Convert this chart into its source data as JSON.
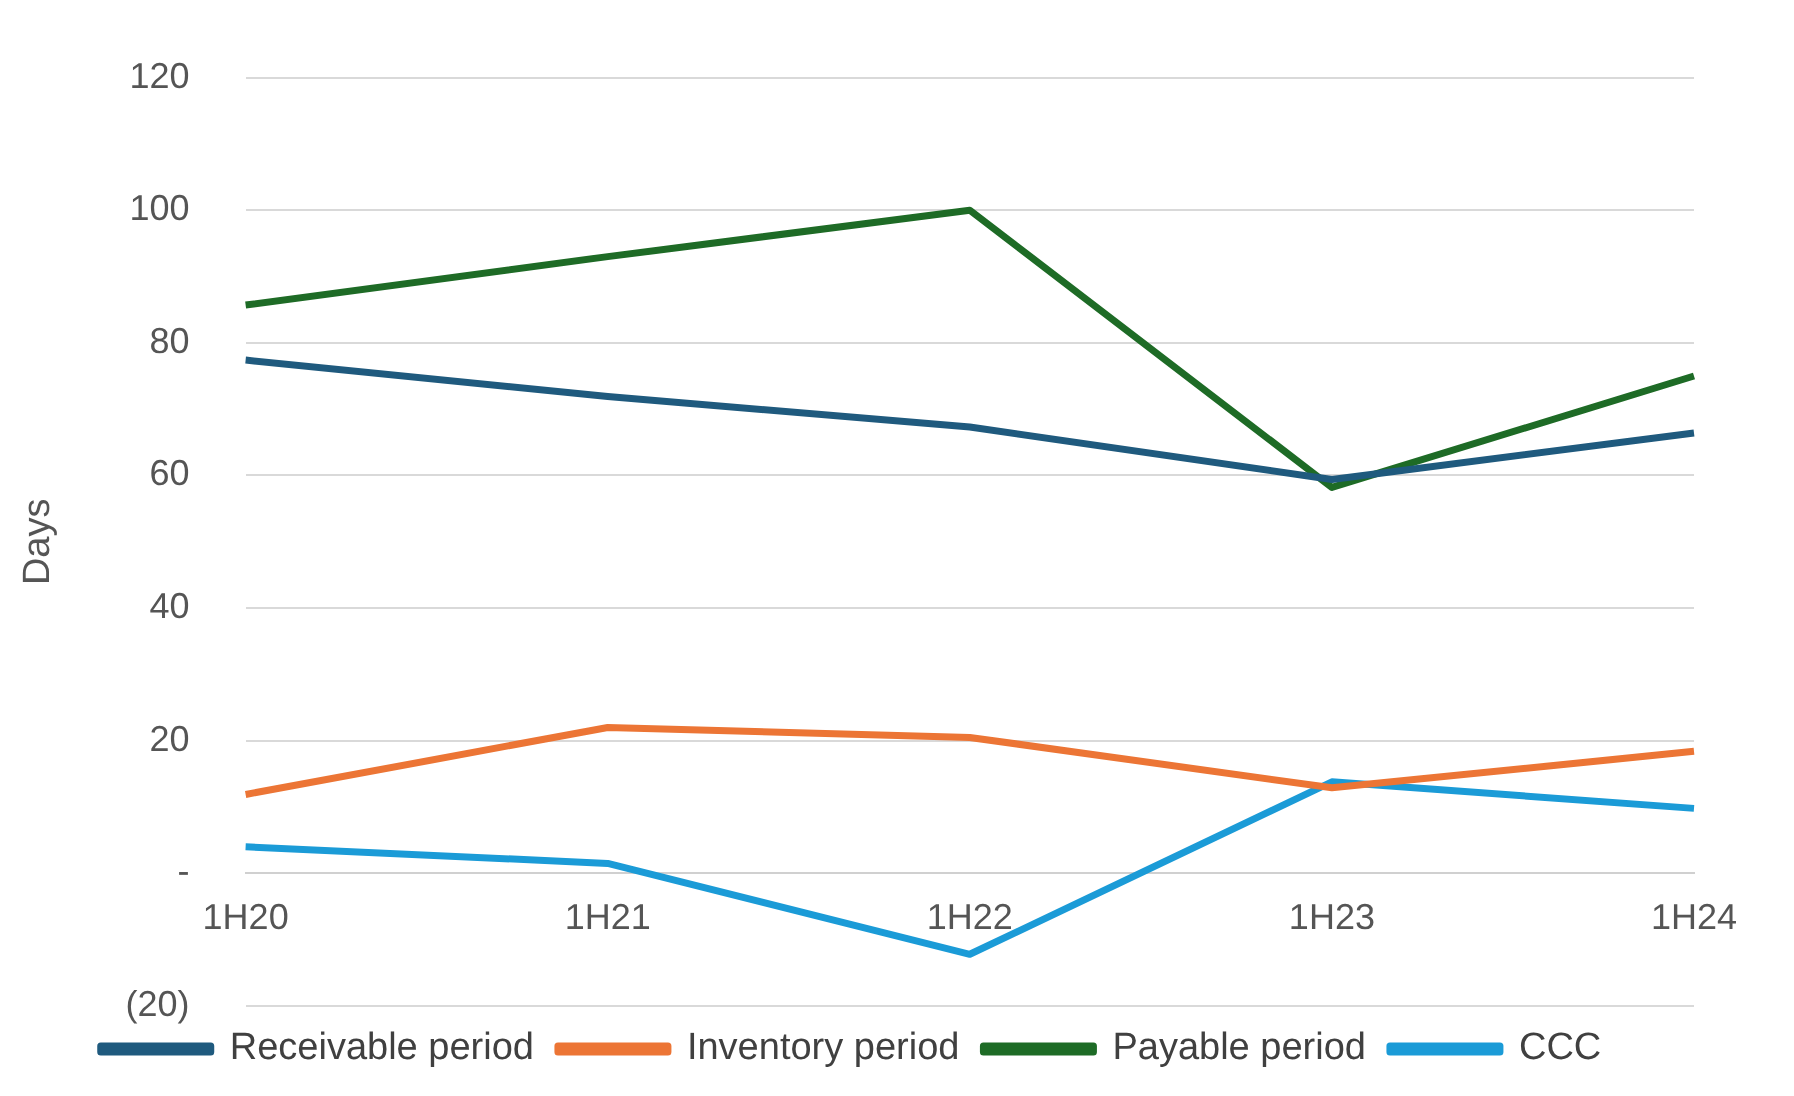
{
  "chart_data": {
    "type": "line",
    "ylabel": "Days",
    "categories": [
      "1H20",
      "1H21",
      "1H22",
      "1H23",
      "1H24"
    ],
    "series": [
      {
        "name": "Receivable period",
        "color": "#1f5a7e",
        "values": [
          77.4,
          71.9,
          67.3,
          59.4,
          66.4
        ]
      },
      {
        "name": "Inventory period",
        "color": "#ec7535",
        "values": [
          11.9,
          22.0,
          20.5,
          12.9,
          18.4
        ]
      },
      {
        "name": "Payable period",
        "color": "#1e6b26",
        "values": [
          85.7,
          93.0,
          100,
          58.2,
          75
        ]
      },
      {
        "name": "CCC",
        "color": "#1b9bd7",
        "values": [
          4.0,
          1.5,
          -12.2,
          13.8,
          9.8
        ]
      }
    ],
    "ylim": [
      -20,
      120
    ],
    "yticks": [
      {
        "value": -20,
        "label": "(20)"
      },
      {
        "value": 0,
        "label": "-"
      },
      20,
      40,
      60,
      80,
      100,
      120
    ],
    "grid": "y",
    "legend": "bottom",
    "marker": "none",
    "line_style": "solid"
  }
}
